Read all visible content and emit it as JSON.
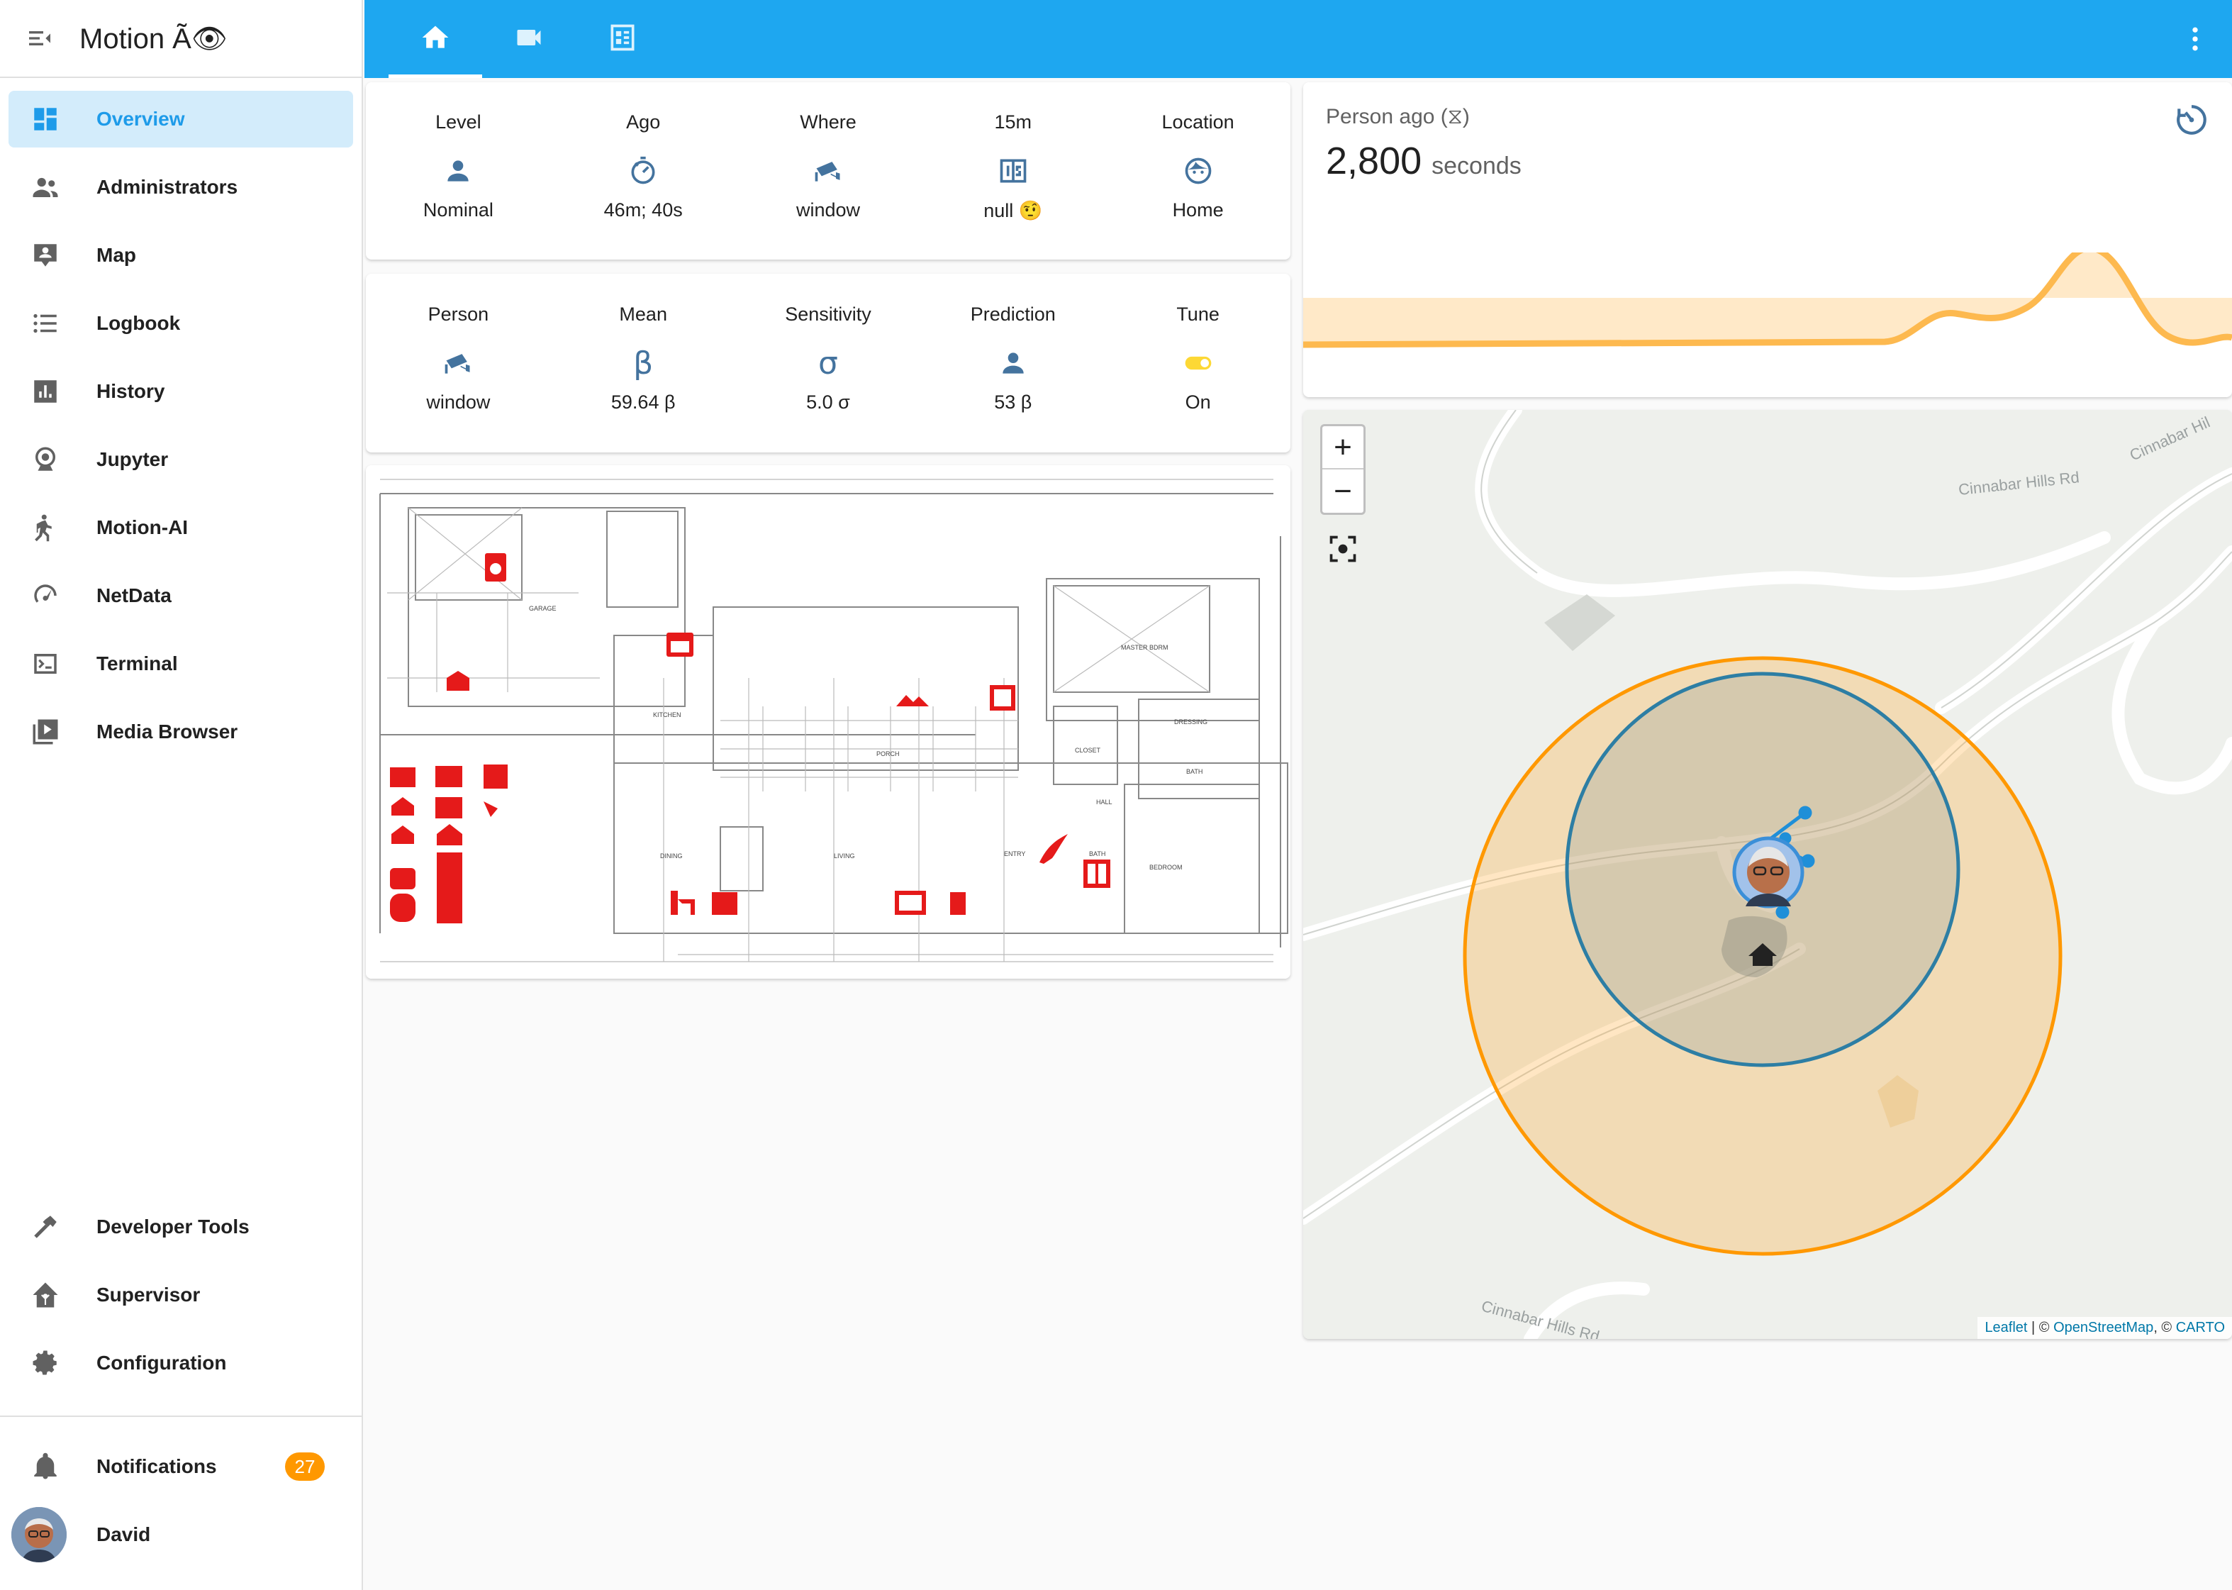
{
  "app": {
    "title": "Motion Ã👁"
  },
  "sidebar": {
    "items": [
      {
        "label": "Overview",
        "icon": "dashboard-icon"
      },
      {
        "label": "Administrators",
        "icon": "account-group-icon"
      },
      {
        "label": "Map",
        "icon": "map-account-icon"
      },
      {
        "label": "Logbook",
        "icon": "format-list-bulleted-icon"
      },
      {
        "label": "History",
        "icon": "chart-box-icon"
      },
      {
        "label": "Jupyter",
        "icon": "webcam-icon"
      },
      {
        "label": "Motion-AI",
        "icon": "walk-icon"
      },
      {
        "label": "NetData",
        "icon": "speedometer-icon"
      },
      {
        "label": "Terminal",
        "icon": "console-icon"
      },
      {
        "label": "Media Browser",
        "icon": "play-box-multiple-icon"
      }
    ],
    "bottom": [
      {
        "label": "Developer Tools",
        "icon": "hammer-icon"
      },
      {
        "label": "Supervisor",
        "icon": "home-assistant-icon"
      },
      {
        "label": "Configuration",
        "icon": "cog-icon"
      }
    ],
    "notifications": {
      "label": "Notifications",
      "count": "27"
    },
    "user": {
      "label": "David"
    }
  },
  "topbar": {
    "tabs": [
      {
        "icon": "home-icon",
        "active": true
      },
      {
        "icon": "video-icon"
      },
      {
        "icon": "view-dashboard-icon"
      }
    ],
    "more_icon": "dots-vertical-icon"
  },
  "glance1": [
    {
      "name": "Level",
      "state": "Nominal",
      "icon": "account-icon"
    },
    {
      "name": "Ago",
      "state": "46m; 40s",
      "icon": "timer-icon"
    },
    {
      "name": "Where",
      "state": "window",
      "icon": "cctv-icon"
    },
    {
      "name": "15m",
      "state": "null 🤨",
      "icon": "counter-icon"
    },
    {
      "name": "Location",
      "state": "Home",
      "icon": "face-icon"
    }
  ],
  "glance2": [
    {
      "name": "Person",
      "state": "window",
      "icon": "cctv-icon"
    },
    {
      "name": "Mean",
      "state": "59.64 β",
      "icon": "beta-icon",
      "glyph": "β"
    },
    {
      "name": "Sensitivity",
      "state": "5.0 σ",
      "icon": "sigma-icon",
      "glyph": "σ"
    },
    {
      "name": "Prediction",
      "state": "53 β",
      "icon": "account-icon"
    },
    {
      "name": "Tune",
      "state": "On",
      "icon": "toggle-switch-icon"
    }
  ],
  "sensor": {
    "name": "Person ago (⧖)",
    "value": "2,800",
    "unit": "seconds"
  },
  "map": {
    "zoom_in": "+",
    "zoom_out": "−",
    "roads": [
      "Cinnabar Hills Rd",
      "Cinnabar Hills Rd",
      "Cinnabar Hil"
    ],
    "attribution": {
      "leaflet": "Leaflet",
      "sep1": " | © ",
      "osm": "OpenStreetMap",
      "sep2": ", © ",
      "carto": "CARTO"
    }
  },
  "floorplan": {
    "room_labels": [
      "GARAGE",
      "KITCHEN",
      "MASTER BDRM",
      "PORCH",
      "CLOSET",
      "DRESSING",
      "BATH",
      "HALL",
      "DINING",
      "LIVING",
      "ENTRY",
      "BATH",
      "BEDROOM"
    ]
  },
  "colors": {
    "accent": "#1ea7f0",
    "active_bg": "#d3ecfb",
    "icon_blue": "#44739e",
    "red": "#e51a1a",
    "orange": "#ff9800"
  }
}
